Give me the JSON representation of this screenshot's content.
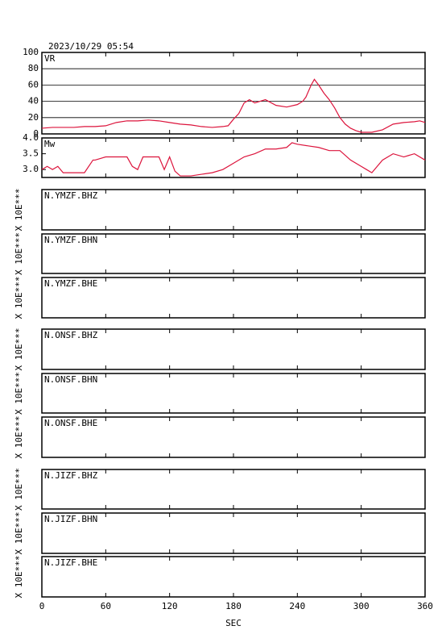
{
  "chart_data": [
    {
      "type": "line",
      "title": "2023/10/29 05:54",
      "label": "VR",
      "color": "#dc143c",
      "x": [
        0,
        10,
        20,
        30,
        40,
        50,
        60,
        70,
        80,
        90,
        100,
        110,
        120,
        130,
        140,
        150,
        160,
        170,
        175,
        180,
        185,
        190,
        195,
        200,
        205,
        210,
        220,
        230,
        240,
        245,
        248,
        253,
        256,
        260,
        265,
        270,
        275,
        280,
        285,
        290,
        295,
        300,
        310,
        320,
        330,
        340,
        350,
        355,
        360
      ],
      "values": [
        7,
        8,
        8,
        8,
        9,
        9,
        10,
        14,
        16,
        16,
        17,
        16,
        14,
        12,
        11,
        9,
        8,
        9,
        10,
        18,
        25,
        38,
        42,
        38,
        40,
        42,
        35,
        33,
        36,
        40,
        45,
        60,
        67,
        60,
        50,
        42,
        32,
        20,
        12,
        7,
        4,
        2,
        2,
        5,
        12,
        14,
        15,
        16,
        14
      ],
      "xlim": [
        0,
        360
      ],
      "xticks": [
        0,
        60,
        120,
        180,
        240,
        300,
        360
      ],
      "ylim": [
        0,
        100
      ],
      "yticks": [
        0,
        20,
        40,
        60,
        80,
        100
      ],
      "grid": true
    },
    {
      "type": "line",
      "label": "Mw",
      "color": "#dc143c",
      "x": [
        0,
        5,
        10,
        15,
        20,
        30,
        40,
        48,
        50,
        60,
        70,
        80,
        85,
        90,
        95,
        100,
        110,
        115,
        120,
        125,
        130,
        140,
        150,
        160,
        170,
        180,
        190,
        200,
        210,
        220,
        230,
        235,
        240,
        250,
        260,
        270,
        280,
        290,
        300,
        305,
        310,
        320,
        330,
        340,
        350,
        360
      ],
      "values": [
        3.0,
        3.1,
        3.0,
        3.1,
        2.9,
        2.9,
        2.9,
        3.3,
        3.3,
        3.4,
        3.4,
        3.4,
        3.1,
        3.0,
        3.4,
        3.4,
        3.4,
        3.0,
        3.4,
        2.95,
        2.8,
        2.8,
        2.85,
        2.9,
        3.0,
        3.2,
        3.4,
        3.5,
        3.65,
        3.65,
        3.7,
        3.85,
        3.8,
        3.75,
        3.7,
        3.6,
        3.6,
        3.3,
        3.1,
        3.0,
        2.9,
        3.3,
        3.5,
        3.4,
        3.5,
        3.3
      ],
      "xlim": [
        0,
        360
      ],
      "xticks": [
        0,
        60,
        120,
        180,
        240,
        300,
        360
      ],
      "ylim": [
        2.75,
        4.0
      ],
      "yticks": [
        {
          "value": 3,
          "label": "3.0"
        },
        3.5,
        {
          "value": 4,
          "label": "4.0"
        }
      ]
    },
    {
      "type": "waveform",
      "label": "N.YMZF.BHZ",
      "ylabel": "X 10E***",
      "xlim": [
        0,
        360
      ],
      "xticks": [
        0,
        60,
        120,
        180,
        240,
        300,
        360
      ]
    },
    {
      "type": "waveform",
      "label": "N.YMZF.BHN",
      "ylabel": "X 10E***",
      "xlim": [
        0,
        360
      ],
      "xticks": [
        0,
        60,
        120,
        180,
        240,
        300,
        360
      ]
    },
    {
      "type": "waveform",
      "label": "N.YMZF.BHE",
      "ylabel": "X 10E***",
      "xlim": [
        0,
        360
      ],
      "xticks": [
        0,
        60,
        120,
        180,
        240,
        300,
        360
      ]
    },
    {
      "type": "waveform",
      "label": "N.ONSF.BHZ",
      "ylabel": "X 10E***",
      "xlim": [
        0,
        360
      ],
      "xticks": [
        0,
        60,
        120,
        180,
        240,
        300,
        360
      ]
    },
    {
      "type": "waveform",
      "label": "N.ONSF.BHN",
      "ylabel": "X 10E***",
      "xlim": [
        0,
        360
      ],
      "xticks": [
        0,
        60,
        120,
        180,
        240,
        300,
        360
      ]
    },
    {
      "type": "waveform",
      "label": "N.ONSF.BHE",
      "ylabel": "X 10E***",
      "xlim": [
        0,
        360
      ],
      "xticks": [
        0,
        60,
        120,
        180,
        240,
        300,
        360
      ]
    },
    {
      "type": "waveform",
      "label": "N.JIZF.BHZ",
      "ylabel": "X 10E***",
      "xlim": [
        0,
        360
      ],
      "xticks": [
        0,
        60,
        120,
        180,
        240,
        300,
        360
      ]
    },
    {
      "type": "waveform",
      "label": "N.JIZF.BHN",
      "ylabel": "X 10E***",
      "xlim": [
        0,
        360
      ],
      "xticks": [
        0,
        60,
        120,
        180,
        240,
        300,
        360
      ]
    },
    {
      "type": "waveform",
      "label": "N.JIZF.BHE",
      "ylabel": "X 10E***",
      "xlim": [
        0,
        360
      ],
      "xticks": [
        0,
        60,
        120,
        180,
        240,
        300,
        360
      ],
      "xlabel": "SEC"
    }
  ]
}
